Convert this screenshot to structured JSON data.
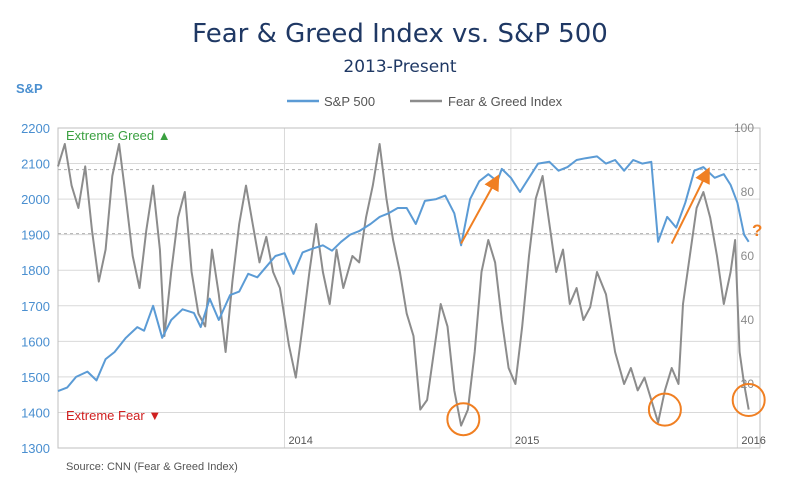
{
  "chart_data": {
    "type": "line",
    "title": "Fear & Greed Index vs. S&P 500",
    "subtitle": "2013-Present",
    "ylabel_left": "S&P",
    "ylim_left": [
      1300,
      2200
    ],
    "yticks_left": [
      1300,
      1400,
      1500,
      1600,
      1700,
      1800,
      1900,
      2000,
      2100,
      2200
    ],
    "ylim_right": [
      0,
      100
    ],
    "yticks_right": [
      20,
      40,
      60,
      80,
      100
    ],
    "xlim": [
      2013.0,
      2016.1
    ],
    "xticks": [
      {
        "value": 2014.0,
        "label": "2014"
      },
      {
        "value": 2015.0,
        "label": "2015"
      },
      {
        "value": 2016.0,
        "label": "2016"
      }
    ],
    "source": "Source: CNN (Fear & Greed Index)",
    "legend": [
      "S&P 500",
      "Fear & Greed Index"
    ],
    "series": [
      {
        "name": "S&P 500",
        "color": "#5b9bd5",
        "axis": "left",
        "points": [
          [
            2013.0,
            1460
          ],
          [
            2013.04,
            1470
          ],
          [
            2013.08,
            1500
          ],
          [
            2013.13,
            1515
          ],
          [
            2013.17,
            1490
          ],
          [
            2013.21,
            1550
          ],
          [
            2013.25,
            1570
          ],
          [
            2013.3,
            1610
          ],
          [
            2013.35,
            1640
          ],
          [
            2013.38,
            1630
          ],
          [
            2013.42,
            1700
          ],
          [
            2013.46,
            1610
          ],
          [
            2013.5,
            1660
          ],
          [
            2013.55,
            1690
          ],
          [
            2013.6,
            1680
          ],
          [
            2013.63,
            1640
          ],
          [
            2013.67,
            1720
          ],
          [
            2013.71,
            1660
          ],
          [
            2013.76,
            1730
          ],
          [
            2013.8,
            1740
          ],
          [
            2013.84,
            1790
          ],
          [
            2013.88,
            1780
          ],
          [
            2013.92,
            1810
          ],
          [
            2013.96,
            1840
          ],
          [
            2014.0,
            1848
          ],
          [
            2014.04,
            1790
          ],
          [
            2014.08,
            1850
          ],
          [
            2014.12,
            1860
          ],
          [
            2014.17,
            1870
          ],
          [
            2014.21,
            1855
          ],
          [
            2014.25,
            1880
          ],
          [
            2014.29,
            1900
          ],
          [
            2014.33,
            1910
          ],
          [
            2014.38,
            1930
          ],
          [
            2014.42,
            1950
          ],
          [
            2014.46,
            1960
          ],
          [
            2014.5,
            1975
          ],
          [
            2014.54,
            1975
          ],
          [
            2014.58,
            1930
          ],
          [
            2014.62,
            1995
          ],
          [
            2014.67,
            2000
          ],
          [
            2014.71,
            2010
          ],
          [
            2014.75,
            1960
          ],
          [
            2014.78,
            1870
          ],
          [
            2014.82,
            2000
          ],
          [
            2014.86,
            2050
          ],
          [
            2014.9,
            2070
          ],
          [
            2014.94,
            2050
          ],
          [
            2014.96,
            2085
          ],
          [
            2015.0,
            2060
          ],
          [
            2015.04,
            2020
          ],
          [
            2015.08,
            2060
          ],
          [
            2015.12,
            2100
          ],
          [
            2015.17,
            2105
          ],
          [
            2015.21,
            2080
          ],
          [
            2015.25,
            2090
          ],
          [
            2015.29,
            2110
          ],
          [
            2015.33,
            2115
          ],
          [
            2015.38,
            2120
          ],
          [
            2015.42,
            2100
          ],
          [
            2015.46,
            2110
          ],
          [
            2015.5,
            2080
          ],
          [
            2015.54,
            2110
          ],
          [
            2015.58,
            2100
          ],
          [
            2015.62,
            2105
          ],
          [
            2015.65,
            1880
          ],
          [
            2015.69,
            1950
          ],
          [
            2015.73,
            1920
          ],
          [
            2015.77,
            1990
          ],
          [
            2015.81,
            2080
          ],
          [
            2015.85,
            2090
          ],
          [
            2015.9,
            2060
          ],
          [
            2015.94,
            2070
          ],
          [
            2015.97,
            2040
          ],
          [
            2016.0,
            1990
          ],
          [
            2016.03,
            1900
          ],
          [
            2016.05,
            1880
          ]
        ]
      },
      {
        "name": "Fear & Greed Index",
        "color": "#8c8c8c",
        "axis": "right",
        "points": [
          [
            2013.0,
            88
          ],
          [
            2013.03,
            95
          ],
          [
            2013.06,
            82
          ],
          [
            2013.09,
            75
          ],
          [
            2013.12,
            88
          ],
          [
            2013.15,
            68
          ],
          [
            2013.18,
            52
          ],
          [
            2013.21,
            62
          ],
          [
            2013.24,
            85
          ],
          [
            2013.27,
            95
          ],
          [
            2013.3,
            78
          ],
          [
            2013.33,
            60
          ],
          [
            2013.36,
            50
          ],
          [
            2013.39,
            68
          ],
          [
            2013.42,
            82
          ],
          [
            2013.45,
            62
          ],
          [
            2013.47,
            35
          ],
          [
            2013.5,
            55
          ],
          [
            2013.53,
            72
          ],
          [
            2013.56,
            80
          ],
          [
            2013.59,
            55
          ],
          [
            2013.62,
            42
          ],
          [
            2013.65,
            38
          ],
          [
            2013.68,
            62
          ],
          [
            2013.71,
            48
          ],
          [
            2013.74,
            30
          ],
          [
            2013.77,
            52
          ],
          [
            2013.8,
            70
          ],
          [
            2013.83,
            82
          ],
          [
            2013.86,
            70
          ],
          [
            2013.89,
            58
          ],
          [
            2013.92,
            66
          ],
          [
            2013.95,
            55
          ],
          [
            2013.98,
            50
          ],
          [
            2014.02,
            32
          ],
          [
            2014.05,
            22
          ],
          [
            2014.08,
            38
          ],
          [
            2014.11,
            55
          ],
          [
            2014.14,
            70
          ],
          [
            2014.17,
            55
          ],
          [
            2014.2,
            45
          ],
          [
            2014.23,
            62
          ],
          [
            2014.26,
            50
          ],
          [
            2014.3,
            60
          ],
          [
            2014.33,
            58
          ],
          [
            2014.36,
            72
          ],
          [
            2014.39,
            82
          ],
          [
            2014.42,
            95
          ],
          [
            2014.45,
            78
          ],
          [
            2014.48,
            65
          ],
          [
            2014.51,
            55
          ],
          [
            2014.54,
            42
          ],
          [
            2014.57,
            35
          ],
          [
            2014.6,
            12
          ],
          [
            2014.63,
            15
          ],
          [
            2014.66,
            30
          ],
          [
            2014.69,
            45
          ],
          [
            2014.72,
            38
          ],
          [
            2014.75,
            18
          ],
          [
            2014.78,
            7
          ],
          [
            2014.81,
            12
          ],
          [
            2014.84,
            30
          ],
          [
            2014.87,
            55
          ],
          [
            2014.9,
            65
          ],
          [
            2014.93,
            58
          ],
          [
            2014.96,
            40
          ],
          [
            2014.99,
            25
          ],
          [
            2015.02,
            20
          ],
          [
            2015.05,
            38
          ],
          [
            2015.08,
            60
          ],
          [
            2015.11,
            78
          ],
          [
            2015.14,
            85
          ],
          [
            2015.17,
            70
          ],
          [
            2015.2,
            55
          ],
          [
            2015.23,
            62
          ],
          [
            2015.26,
            45
          ],
          [
            2015.29,
            50
          ],
          [
            2015.32,
            40
          ],
          [
            2015.35,
            44
          ],
          [
            2015.38,
            55
          ],
          [
            2015.42,
            48
          ],
          [
            2015.46,
            30
          ],
          [
            2015.5,
            20
          ],
          [
            2015.53,
            25
          ],
          [
            2015.56,
            18
          ],
          [
            2015.59,
            22
          ],
          [
            2015.62,
            15
          ],
          [
            2015.65,
            8
          ],
          [
            2015.68,
            18
          ],
          [
            2015.71,
            25
          ],
          [
            2015.74,
            20
          ],
          [
            2015.76,
            45
          ],
          [
            2015.79,
            60
          ],
          [
            2015.82,
            75
          ],
          [
            2015.85,
            80
          ],
          [
            2015.88,
            72
          ],
          [
            2015.91,
            60
          ],
          [
            2015.94,
            45
          ],
          [
            2015.97,
            55
          ],
          [
            2015.99,
            65
          ],
          [
            2016.01,
            30
          ],
          [
            2016.03,
            20
          ],
          [
            2016.05,
            12
          ]
        ]
      }
    ],
    "threshold_lines": [
      {
        "axis": "right",
        "value": 87
      },
      {
        "axis": "right",
        "value": 67
      }
    ],
    "annotations": [
      {
        "text": "Extreme Greed",
        "symbol": "▲",
        "color": "#3aa040"
      },
      {
        "text": "Extreme Fear",
        "symbol": "▼",
        "color": "#d02020"
      },
      {
        "text": "?",
        "color": "#f07f22"
      }
    ],
    "highlight_circles": [
      [
        2014.79,
        9
      ],
      [
        2015.68,
        12
      ],
      [
        2016.05,
        15
      ]
    ],
    "arrows": [
      [
        [
          2014.78,
          1875
        ],
        [
          2014.94,
          2060
        ]
      ],
      [
        [
          2015.71,
          1875
        ],
        [
          2015.87,
          2080
        ]
      ]
    ],
    "colors": {
      "accent_orange": "#f07f22",
      "grid": "#d9d9d9",
      "axis_text_left": "#4a8fd0",
      "axis_text_right": "#8a8a8a"
    }
  }
}
